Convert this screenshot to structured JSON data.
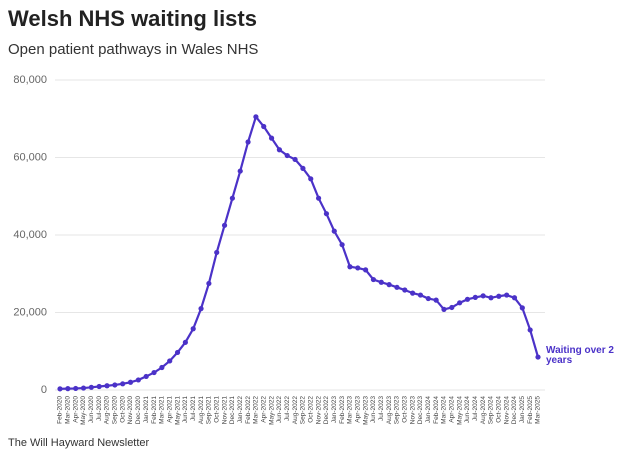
{
  "chart_data": {
    "type": "line",
    "title": "Welsh NHS waiting lists",
    "subtitle": "Open patient pathways in Wales NHS",
    "source": "The Will Hayward Newsletter",
    "categories": [
      "Feb-2020",
      "Mar-2020",
      "Apr-2020",
      "May-2020",
      "Jun-2020",
      "Jul-2020",
      "Aug-2020",
      "Sep-2020",
      "Oct-2020",
      "Nov-2020",
      "Dec-2020",
      "Jan-2021",
      "Feb-2021",
      "Mar-2021",
      "Apr-2021",
      "May-2021",
      "Jun-2021",
      "Jul-2021",
      "Aug-2021",
      "Sep-2021",
      "Oct-2021",
      "Nov-2021",
      "Dec-2021",
      "Jan-2022",
      "Feb-2022",
      "Mar-2022",
      "Apr-2022",
      "May-2022",
      "Jun-2022",
      "Jul-2022",
      "Aug-2022",
      "Sep-2022",
      "Oct-2022",
      "Nov-2022",
      "Dec-2022",
      "Jan-2023",
      "Feb-2023",
      "Mar-2023",
      "Apr-2023",
      "May-2023",
      "Jun-2023",
      "Jul-2023",
      "Aug-2023",
      "Sep-2023",
      "Oct-2023",
      "Nov-2023",
      "Dec-2023",
      "Jan-2024",
      "Feb-2024",
      "Mar-2024",
      "Apr-2024",
      "May-2024",
      "Jun-2024",
      "Jul-2024",
      "Aug-2024",
      "Sep-2024",
      "Oct-2024",
      "Nov-2024",
      "Dec-2024",
      "Jan-2025",
      "Feb-2025",
      "Mar-2025"
    ],
    "series": [
      {
        "name": "Waiting over 2 years",
        "color": "#4b32c8",
        "values": [
          300,
          350,
          400,
          500,
          700,
          900,
          1100,
          1300,
          1600,
          2000,
          2600,
          3500,
          4500,
          5800,
          7500,
          9700,
          12300,
          15800,
          21000,
          27500,
          35500,
          42500,
          49500,
          56500,
          64000,
          70500,
          68000,
          65000,
          62000,
          60500,
          59500,
          57200,
          54500,
          49500,
          45500,
          41000,
          37500,
          31800,
          31500,
          31000,
          28500,
          27800,
          27200,
          26500,
          25800,
          25000,
          24500,
          23600,
          23200,
          20800,
          21300,
          22500,
          23400,
          23900,
          24300,
          23800,
          24200,
          24500,
          23800,
          21200,
          15500,
          8500
        ]
      }
    ],
    "ylim": [
      0,
      80000
    ],
    "yticks": [
      0,
      {
        "value": 20000,
        "label": "20,000"
      },
      {
        "value": 40000,
        "label": "40,000"
      },
      {
        "value": 60000,
        "label": "60,000"
      },
      {
        "value": 80000,
        "label": "80,000"
      }
    ],
    "grid": true
  }
}
